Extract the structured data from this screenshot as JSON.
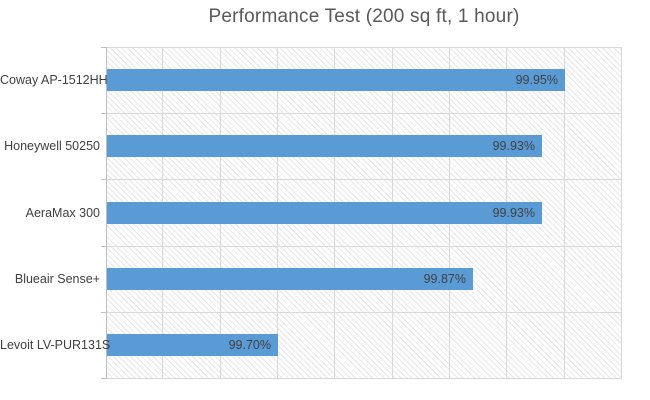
{
  "chart_data": {
    "type": "bar",
    "orientation": "horizontal",
    "title": "Performance Test (200 sq ft, 1 hour)",
    "categories": [
      "Coway AP-1512HH",
      "Honeywell 50250",
      "AeraMax 300",
      "Blueair Sense+",
      "Levoit LV-PUR131S"
    ],
    "values": [
      99.95,
      99.93,
      99.93,
      99.87,
      99.7
    ],
    "data_labels": [
      "99.95%",
      "99.93%",
      "99.93%",
      "99.87%",
      "99.70%"
    ],
    "xlim": [
      99.55,
      100.0
    ],
    "x_major_unit": 0.05,
    "x_axis_tick_labels_visible": false,
    "legend": "none",
    "grid": "both",
    "plot_background": "light-diagonal-hatch",
    "colors": {
      "bar": "#5B9BD5",
      "gridline": "#D9D9D9",
      "axis_line": "#BFBFBF",
      "hatch": "#E6E6E6",
      "title_text": "#595959",
      "label_text": "#404040"
    }
  }
}
